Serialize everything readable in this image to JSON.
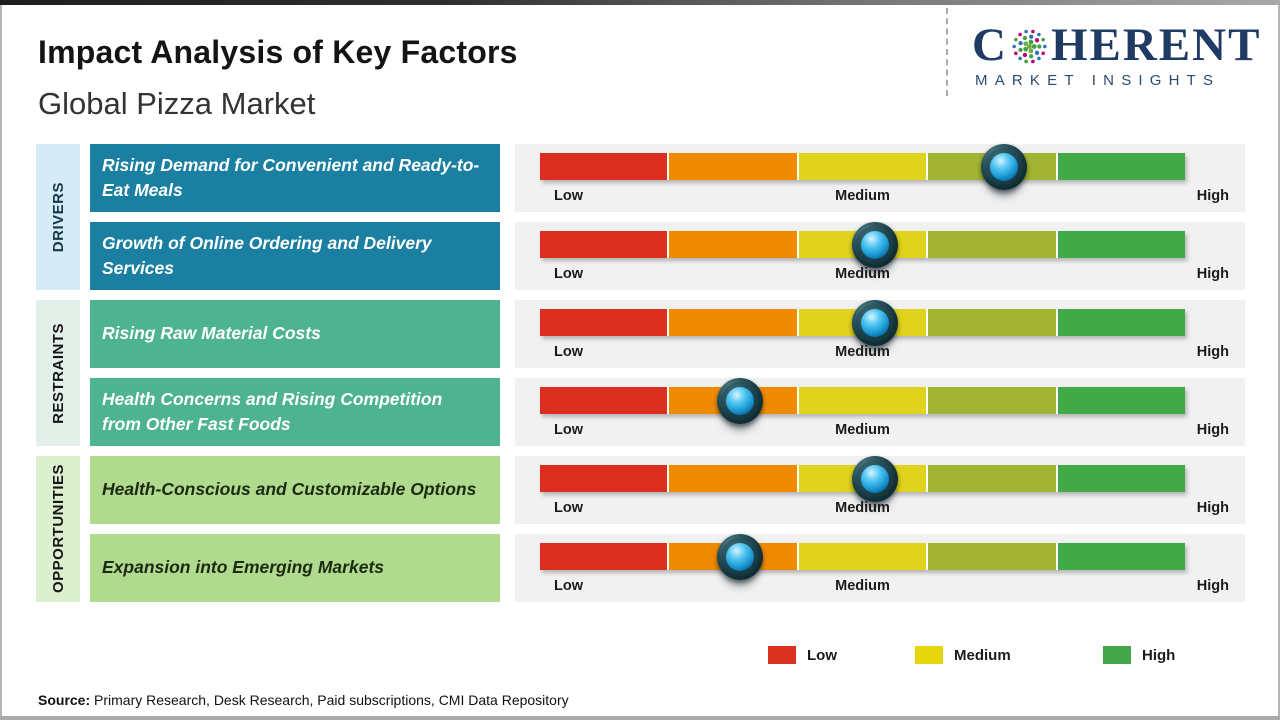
{
  "header": {
    "title": "Impact Analysis of Key Factors",
    "subtitle": "Global Pizza Market"
  },
  "logo": {
    "letter_c": "C",
    "rest": "HERENT",
    "tagline": "MARKET INSIGHTS",
    "brand_color": "#1f3a63"
  },
  "scale_labels": {
    "low": "Low",
    "medium": "Medium",
    "high": "High"
  },
  "legend": [
    {
      "label": "Low",
      "color": "#d93221"
    },
    {
      "label": "Medium",
      "color": "#e5d60e"
    },
    {
      "label": "High",
      "color": "#43a648"
    }
  ],
  "source": {
    "label": "Source:",
    "text": " Primary Research, Desk Research, Paid subscriptions, CMI Data Repository"
  },
  "chart_data": {
    "type": "impact-scale",
    "title": "Impact Analysis of Key Factors",
    "subtitle": "Global Pizza Market",
    "scale": [
      "Low",
      "Medium",
      "High"
    ],
    "scale_range_pct": [
      0,
      100
    ],
    "segments": [
      "#da2f1f",
      "#f08b00",
      "#e0d31d",
      "#a1b532",
      "#42a948"
    ],
    "legend_position": "bottom-right",
    "groups": [
      {
        "category": "DRIVERS",
        "strip_color": "#d5ebf5",
        "strip_text": "#16374a",
        "box_color": "#1b7fa1",
        "box_text": "#ffffff",
        "factors": [
          {
            "text": "Rising Demand for Convenient and Ready-to-Eat Meals",
            "impact_pct": 72,
            "impact": "Medium-High"
          },
          {
            "text": "Growth of Online Ordering and Delivery Services",
            "impact_pct": 52,
            "impact": "Medium"
          }
        ]
      },
      {
        "category": "RESTRAINTS",
        "strip_color": "#e3f0e9",
        "strip_text": "#161616",
        "box_color": "#4db390",
        "box_text": "#ffffff",
        "factors": [
          {
            "text": "Rising Raw Material Costs",
            "impact_pct": 52,
            "impact": "Medium"
          },
          {
            "text": "Health Concerns and Rising Competition from Other Fast Foods",
            "impact_pct": 31,
            "impact": "Low-Medium"
          }
        ]
      },
      {
        "category": "OPPORTUNITIES",
        "strip_color": "#dcefcf",
        "strip_text": "#161616",
        "box_color": "#b0db8e",
        "box_text": "#1c2a12",
        "factors": [
          {
            "text": "Health-Conscious and Customizable Options",
            "impact_pct": 52,
            "impact": "Medium"
          },
          {
            "text": "Expansion into Emerging Markets",
            "impact_pct": 31,
            "impact": "Low-Medium"
          }
        ]
      }
    ]
  }
}
